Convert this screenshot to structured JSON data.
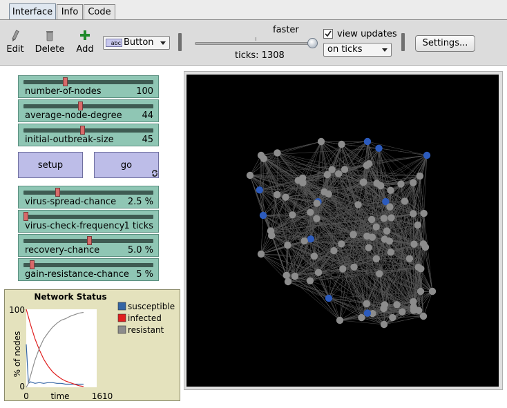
{
  "tabs": [
    {
      "label": "Interface",
      "active": true
    },
    {
      "label": "Info",
      "active": false
    },
    {
      "label": "Code",
      "active": false
    }
  ],
  "toolbar": {
    "edit_label": "Edit",
    "delete_label": "Delete",
    "add_label": "Add",
    "widget_type": "Button",
    "widget_type_badge": "abc",
    "speed_label": "faster",
    "ticks_text": "ticks: 1308",
    "view_updates_label": "view updates",
    "view_updates_checked": true,
    "update_mode": "on ticks",
    "settings_label": "Settings..."
  },
  "sliders": [
    {
      "name": "number-of-nodes",
      "value": "100",
      "fraction": 0.31
    },
    {
      "name": "average-node-degree",
      "value": "44",
      "fraction": 0.43
    },
    {
      "name": "initial-outbreak-size",
      "value": "45",
      "fraction": 0.45
    },
    {
      "name": "virus-spread-chance",
      "value": "2.5 %",
      "fraction": 0.25
    },
    {
      "name": "virus-check-frequency",
      "value": "1 ticks",
      "fraction": 0.0
    },
    {
      "name": "recovery-chance",
      "value": "5.0 %",
      "fraction": 0.5
    },
    {
      "name": "gain-resistance-chance",
      "value": "5 %",
      "fraction": 0.05
    }
  ],
  "buttons": {
    "setup": "setup",
    "go": "go"
  },
  "plot": {
    "title": "Network Status",
    "ylabel": "% of nodes",
    "xlabel": "time",
    "ymax_label": "100",
    "ymin_label": "0",
    "xmin_label": "0",
    "xmax_label": "1610",
    "legend": [
      {
        "name": "susceptible",
        "color": "#3465a4"
      },
      {
        "name": "infected",
        "color": "#e02020"
      },
      {
        "name": "resistant",
        "color": "#8c8c8c"
      }
    ]
  },
  "chart_data": {
    "type": "line",
    "title": "Network Status",
    "xlabel": "time",
    "ylabel": "% of nodes",
    "xlim": [
      0,
      1610
    ],
    "ylim": [
      0,
      100
    ],
    "series": [
      {
        "name": "susceptible",
        "color": "#3465a4",
        "x": [
          0,
          50,
          100,
          200,
          300,
          400,
          500,
          600,
          700,
          800,
          900,
          1000,
          1100,
          1200,
          1308
        ],
        "y": [
          55,
          5,
          7,
          5,
          6,
          5,
          6,
          6,
          5,
          5,
          4,
          4,
          4,
          4,
          4
        ]
      },
      {
        "name": "infected",
        "color": "#e02020",
        "x": [
          0,
          50,
          100,
          200,
          300,
          400,
          500,
          600,
          700,
          800,
          900,
          1000,
          1100,
          1200,
          1308
        ],
        "y": [
          100,
          90,
          80,
          62,
          48,
          36,
          27,
          20,
          15,
          11,
          8,
          6,
          4,
          2,
          1
        ]
      },
      {
        "name": "resistant",
        "color": "#8c8c8c",
        "x": [
          0,
          50,
          100,
          200,
          300,
          400,
          500,
          600,
          700,
          800,
          900,
          1000,
          1100,
          1200,
          1308
        ],
        "y": [
          0,
          5,
          15,
          35,
          50,
          62,
          70,
          77,
          82,
          86,
          88,
          91,
          93,
          95,
          96
        ]
      }
    ]
  },
  "world": {
    "background": "#000000",
    "node_color": "#8c8c8c",
    "infected_color": "#2c5bbd",
    "link_color": "#7a7a7a"
  }
}
